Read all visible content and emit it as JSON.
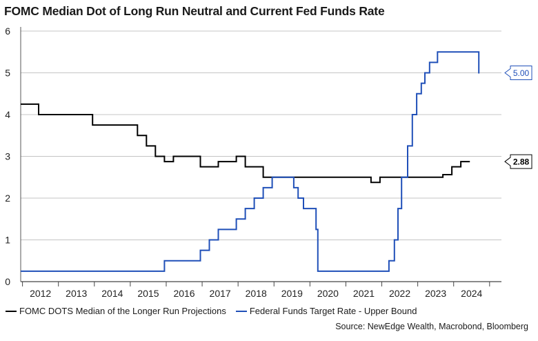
{
  "chart_data": {
    "type": "line",
    "step": true,
    "title": "FOMC Median Dot of Long Run Neutral and Current Fed Funds Rate",
    "xlabel": "",
    "ylabel": "",
    "xlim": [
      2011.95,
      2025.33
    ],
    "ylim": [
      0,
      6
    ],
    "yticks": [
      0,
      1,
      2,
      3,
      4,
      5,
      6
    ],
    "xtick_labels": [
      "2012",
      "2013",
      "2014",
      "2015",
      "2016",
      "2017",
      "2018",
      "2019",
      "2020",
      "2021",
      "2022",
      "2023",
      "2024"
    ],
    "grid": true,
    "legend_position": "bottom-left",
    "source": "Source: NewEdge Wealth, Macrobond, Bloomberg",
    "series": [
      {
        "name": "FOMC DOTS Median of the Longer Run Projections",
        "color": "#000000",
        "end_label": "2.88",
        "points": [
          [
            2011.95,
            4.25
          ],
          [
            2012.45,
            4.0
          ],
          [
            2013.95,
            3.75
          ],
          [
            2015.2,
            3.5
          ],
          [
            2015.45,
            3.25
          ],
          [
            2015.7,
            3.0
          ],
          [
            2015.95,
            2.875
          ],
          [
            2016.2,
            3.0
          ],
          [
            2016.95,
            2.75
          ],
          [
            2017.45,
            2.875
          ],
          [
            2017.95,
            3.0
          ],
          [
            2018.2,
            2.75
          ],
          [
            2018.7,
            2.5
          ],
          [
            2021.7,
            2.375
          ],
          [
            2021.95,
            2.5
          ],
          [
            2023.45,
            2.5
          ],
          [
            2023.7,
            2.5625
          ],
          [
            2023.95,
            2.75
          ],
          [
            2024.2,
            2.875
          ],
          [
            2024.45,
            2.875
          ]
        ]
      },
      {
        "name": "Federal Funds Target Rate - Upper Bound",
        "color": "#1f4fb8",
        "end_label": "5.00",
        "points": [
          [
            2011.95,
            0.25
          ],
          [
            2015.95,
            0.5
          ],
          [
            2016.95,
            0.75
          ],
          [
            2017.2,
            1.0
          ],
          [
            2017.45,
            1.25
          ],
          [
            2017.95,
            1.5
          ],
          [
            2018.2,
            1.75
          ],
          [
            2018.45,
            2.0
          ],
          [
            2018.7,
            2.25
          ],
          [
            2018.95,
            2.5
          ],
          [
            2019.55,
            2.25
          ],
          [
            2019.67,
            2.0
          ],
          [
            2019.82,
            1.75
          ],
          [
            2020.17,
            1.25
          ],
          [
            2020.22,
            0.25
          ],
          [
            2022.2,
            0.5
          ],
          [
            2022.35,
            1.0
          ],
          [
            2022.45,
            1.75
          ],
          [
            2022.55,
            2.5
          ],
          [
            2022.72,
            3.25
          ],
          [
            2022.85,
            4.0
          ],
          [
            2022.97,
            4.5
          ],
          [
            2023.1,
            4.75
          ],
          [
            2023.2,
            5.0
          ],
          [
            2023.33,
            5.25
          ],
          [
            2023.55,
            5.5
          ],
          [
            2024.7,
            5.0
          ],
          [
            2024.72,
            5.0
          ]
        ]
      }
    ]
  }
}
